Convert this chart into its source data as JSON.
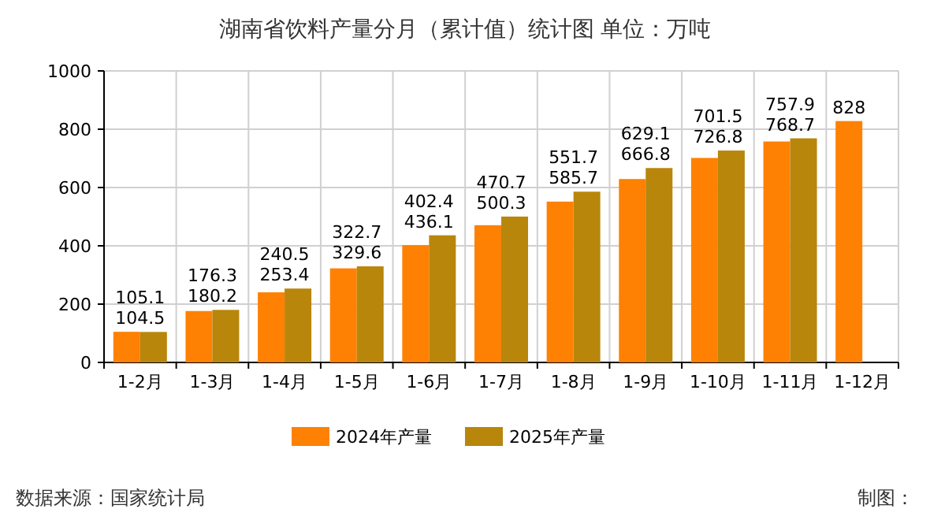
{
  "chart_data": {
    "type": "bar",
    "title": "湖南省饮料产量分月（累计值）统计图 单位：万吨",
    "categories": [
      "1-2月",
      "1-3月",
      "1-4月",
      "1-5月",
      "1-6月",
      "1-7月",
      "1-8月",
      "1-9月",
      "1-10月",
      "1-11月",
      "1-12月"
    ],
    "series": [
      {
        "name": "2024年产量",
        "color": "#fe8103",
        "values": [
          105.1,
          176.3,
          240.5,
          322.7,
          402.4,
          470.7,
          551.7,
          629.1,
          701.5,
          757.9,
          828
        ]
      },
      {
        "name": "2025年产量",
        "color": "#b8860b",
        "values": [
          104.5,
          180.2,
          253.4,
          329.6,
          436.1,
          500.3,
          585.7,
          666.8,
          726.8,
          768.7,
          null
        ]
      }
    ],
    "ylim": [
      0,
      1000
    ],
    "yticks": [
      0,
      200,
      400,
      600,
      800,
      1000
    ],
    "grid": true,
    "legend": "bottom",
    "data_labels": true,
    "annotations": [
      "数据来源：国家统计局",
      "制图："
    ]
  }
}
